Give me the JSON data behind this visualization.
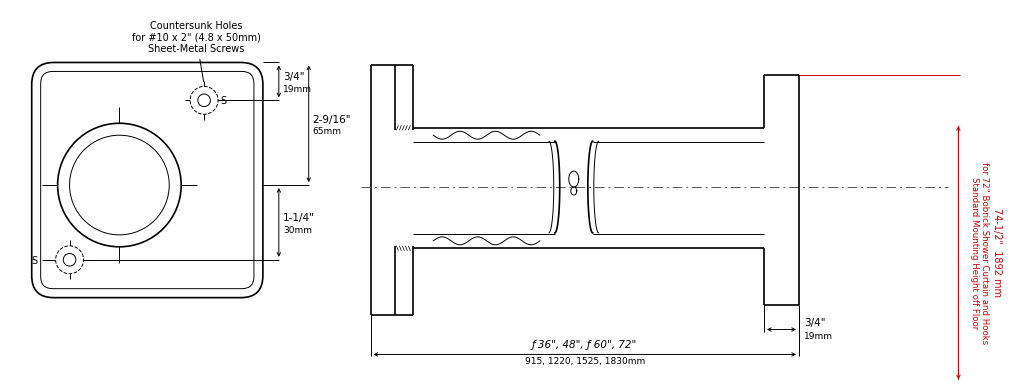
{
  "bg_color": "#ffffff",
  "line_color": "#000000",
  "red_color": "#cc0000",
  "annotation_countersunk": "Countersunk Holes\nfor #10 x 2\" (4.8 x 50mm)\nSheet-Metal Screws",
  "dim_3_4_top": "3/4\"",
  "dim_19mm_top": "19mm",
  "dim_2_9_16": "2-9/16\"",
  "dim_65mm": "65mm",
  "dim_1_1_4": "1-1/4\"",
  "dim_30mm": "30mm",
  "dim_3_4_bot": "3/4\"",
  "dim_19mm_bot": "19mm",
  "dim_lengths_line1": "ƒ 36\", 48\", ƒ 60\", 72\"",
  "dim_lengths_line2": "915, 1220, 1525, 1830mm",
  "dim_vertical_size": "74-1/2\"  1892 mm",
  "dim_vertical_label1": "Standard Mounting Height off Floor",
  "dim_vertical_label2": "for 72\" Bobrick Shower Curtain and Hooks"
}
